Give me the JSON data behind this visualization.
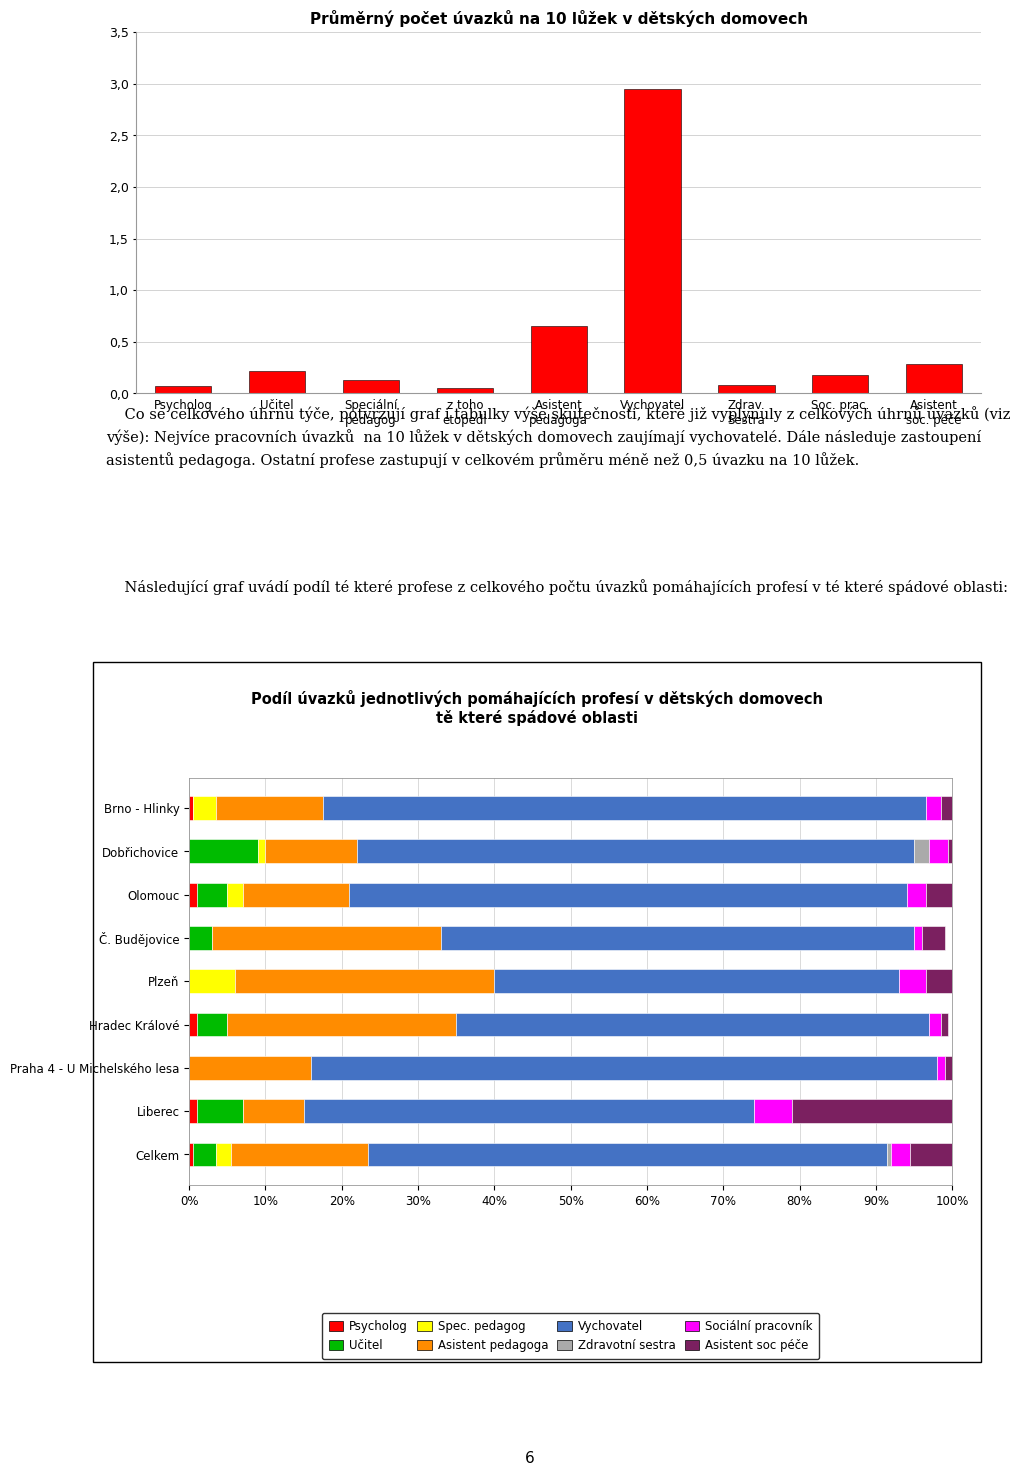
{
  "bar_chart": {
    "title": "Průměrný počet úvazků na 10 lůžek v dětských domovech",
    "categories": [
      "Psycholog",
      "Učitel",
      "Speciální\npedagog",
      "z toho\netopedi",
      "Asistent\npedagoga",
      "Vychovatel",
      "Zdrav.\nSestra",
      "Soc. prac.",
      "Asistent\nsoc. péče"
    ],
    "values": [
      0.07,
      0.22,
      0.13,
      0.05,
      0.65,
      2.95,
      0.08,
      0.18,
      0.28
    ],
    "bar_color": "#ff0000",
    "ylim": [
      0,
      3.5
    ],
    "yticks": [
      0.0,
      0.5,
      1.0,
      1.5,
      2.0,
      2.5,
      3.0,
      3.5
    ],
    "yticklabels": [
      "0,0",
      "0,5",
      "1,0",
      "1,5",
      "2,0",
      "2,5",
      "3,0",
      "3,5"
    ]
  },
  "text_paragraph1": "    Co se celkového úhrnu týče, potvrzují graf i tabulky výše skutečnosti, které již vyplynuly z celkových úhrnů úvazků (viz výše): Nejvíce pracovních úvazků  na 10 lůžek v dětských domovech zaujímají vychovatelé. Dále následuje zastoupení asistentů pedagoga. Ostatní profese zastupují v celkovém průměru méně než 0,5 úvazku na 10 lůžek.",
  "text_paragraph2": "    Následující graf uvádí podíl té které profese z celkového počtu úvazků pomáhajících profesí v té které spádové oblasti:",
  "stacked_chart": {
    "title": "Podíl úvazků jednotlivých pomáhajících profesí v dětských domovech\ntě které spádové oblasti",
    "categories": [
      "Brno - Hlinky",
      "Dobřichovice",
      "Olomouc",
      "Č. Budějovice",
      "Plzeň",
      "Hradec Králové",
      "Praha 4 - U Michelského lesa",
      "Liberec",
      "Celkem"
    ],
    "series_order": [
      "Psycholog",
      "Učitel",
      "Spec. pedagog",
      "Asistent pedagoga",
      "Vychovatel",
      "Zdravotní sestra",
      "Sociální pracovník",
      "Asistent soc péče"
    ],
    "series": {
      "Psycholog": [
        0.005,
        0.0,
        0.01,
        0.0,
        0.0,
        0.01,
        0.0,
        0.01,
        0.005
      ],
      "Učitel": [
        0.0,
        0.09,
        0.04,
        0.03,
        0.0,
        0.04,
        0.0,
        0.06,
        0.03
      ],
      "Spec. pedagog": [
        0.03,
        0.01,
        0.02,
        0.0,
        0.06,
        0.0,
        0.0,
        0.0,
        0.02
      ],
      "Asistent pedagoga": [
        0.14,
        0.12,
        0.14,
        0.3,
        0.34,
        0.3,
        0.16,
        0.08,
        0.18
      ],
      "Vychovatel": [
        0.79,
        0.73,
        0.73,
        0.62,
        0.53,
        0.62,
        0.82,
        0.59,
        0.68
      ],
      "Zdravotní sestra": [
        0.0,
        0.02,
        0.0,
        0.0,
        0.0,
        0.0,
        0.0,
        0.0,
        0.005
      ],
      "Sociální pracovník": [
        0.02,
        0.025,
        0.025,
        0.01,
        0.035,
        0.015,
        0.01,
        0.05,
        0.025
      ],
      "Asistent soc péče": [
        0.025,
        0.015,
        0.065,
        0.03,
        0.065,
        0.01,
        0.01,
        0.24,
        0.06
      ]
    },
    "colors": {
      "Psycholog": "#ff0000",
      "Učitel": "#00bb00",
      "Spec. pedagog": "#ffff00",
      "Asistent pedagoga": "#ff8c00",
      "Vychovatel": "#4472c4",
      "Zdravotní sestra": "#aaaaaa",
      "Sociální pracovník": "#ff00ff",
      "Asistent soc péče": "#7b2060"
    },
    "legend_order": [
      "Psycholog",
      "Učitel",
      "Spec. pedagog",
      "Asistent pedagoga",
      "Vychovatel",
      "Zdravotní sestra",
      "Sociální pracovník",
      "Asistent soc péče"
    ]
  },
  "page_number": "6",
  "bg_color": "#ffffff"
}
